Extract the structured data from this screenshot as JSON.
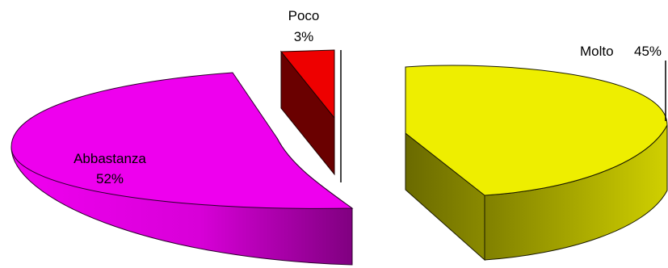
{
  "chart_data": {
    "type": "pie",
    "variant": "3d-exploded",
    "slices": [
      {
        "label": "Abbastanza",
        "value": 52,
        "value_label": "52%",
        "color": "#ee00ee"
      },
      {
        "label": "Poco",
        "value": 3,
        "value_label": "3%",
        "color": "#ee0000"
      },
      {
        "label": "Molto",
        "value": 45,
        "value_label": "45%",
        "color": "#eeee00"
      }
    ]
  }
}
